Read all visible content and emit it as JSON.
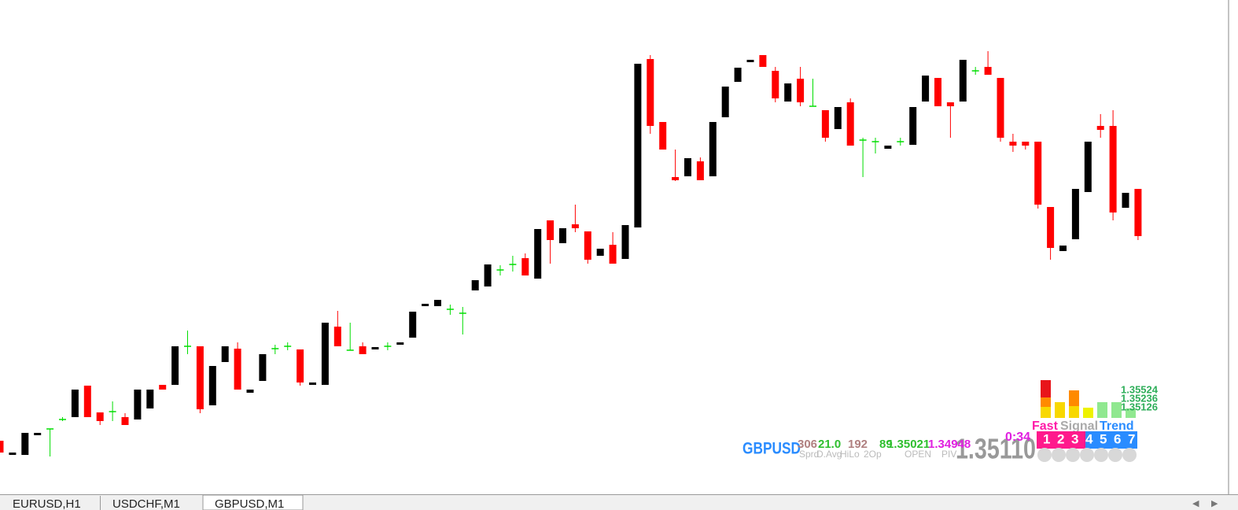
{
  "chart_data": {
    "type": "candlestick",
    "categories": [
      null,
      null,
      null,
      null,
      null,
      null,
      null,
      null,
      null,
      null,
      null,
      null,
      null,
      null,
      null,
      null,
      null,
      null,
      null,
      null,
      null,
      null,
      null,
      null,
      null,
      null,
      null,
      null,
      null,
      null,
      null,
      null,
      null,
      null,
      null,
      null,
      null,
      null,
      null,
      null,
      null,
      null,
      null,
      null,
      null,
      null,
      null,
      null,
      null,
      null,
      null,
      null,
      null,
      null,
      null,
      null,
      null,
      null,
      null,
      null,
      null,
      null,
      null,
      null,
      null,
      null,
      null,
      null,
      null,
      null,
      null,
      null,
      null,
      null,
      null,
      null,
      null,
      null,
      null,
      null,
      null,
      null,
      null,
      null,
      null,
      null,
      null,
      null,
      null,
      null,
      null,
      null
    ],
    "open": [
      1.3485,
      1.34832,
      1.34832,
      1.34857,
      1.34865,
      1.34877,
      1.3488,
      1.3492,
      1.34886,
      1.34887,
      1.3488,
      1.34877,
      1.34891,
      1.34921,
      1.34921,
      1.3497,
      1.3497,
      1.34895,
      1.3495,
      1.34967,
      1.34911,
      1.34926,
      1.34967,
      1.3497,
      1.34966,
      1.34921,
      1.34921,
      1.34995,
      1.34965,
      1.3497,
      1.34966,
      1.3497,
      1.34972,
      1.34981,
      1.35021,
      1.35021,
      1.35017,
      1.35012,
      1.35041,
      1.35046,
      1.35067,
      1.35074,
      1.35082,
      1.35056,
      1.3513,
      1.35101,
      1.35125,
      1.35116,
      1.35085,
      1.35099,
      1.35081,
      1.35121,
      1.35335,
      1.35255,
      1.35185,
      1.35186,
      1.35205,
      1.35186,
      1.35261,
      1.35306,
      1.35331,
      1.3534,
      1.3532,
      1.35281,
      1.3531,
      1.35275,
      1.3527,
      1.35246,
      1.3528,
      1.35232,
      1.3523,
      1.35221,
      1.3523,
      1.35226,
      1.35281,
      1.35311,
      1.3528,
      1.35281,
      1.3532,
      1.35325,
      1.35311,
      1.3523,
      1.3523,
      1.3523,
      1.35147,
      1.35091,
      1.35106,
      1.35166,
      1.3525,
      1.3525,
      1.35146,
      1.3517
    ],
    "high": [
      1.3485,
      1.34835,
      1.3486,
      1.3486,
      1.34865,
      1.3488,
      1.34915,
      1.3492,
      1.34886,
      1.349,
      1.34885,
      1.34915,
      1.34915,
      1.34921,
      1.3497,
      1.3499,
      1.3497,
      1.34945,
      1.3497,
      1.34975,
      1.34915,
      1.3496,
      1.34972,
      1.34975,
      1.34966,
      1.34924,
      1.35,
      1.35015,
      1.35,
      1.34975,
      1.34969,
      1.34975,
      1.34975,
      1.35014,
      1.35024,
      1.35029,
      1.35023,
      1.3502,
      1.35054,
      1.35074,
      1.35073,
      1.35085,
      1.35088,
      1.35119,
      1.3513,
      1.3512,
      1.3515,
      1.35116,
      1.35094,
      1.35115,
      1.35124,
      1.35329,
      1.3534,
      1.35255,
      1.3522,
      1.35209,
      1.3521,
      1.35255,
      1.353,
      1.35324,
      1.35334,
      1.3534,
      1.35325,
      1.35304,
      1.35325,
      1.3531,
      1.3527,
      1.35274,
      1.35285,
      1.35235,
      1.35235,
      1.35225,
      1.35235,
      1.35274,
      1.35314,
      1.35311,
      1.3528,
      1.35334,
      1.35325,
      1.35345,
      1.35311,
      1.3524,
      1.3523,
      1.3523,
      1.35147,
      1.35098,
      1.3517,
      1.3523,
      1.35265,
      1.3527,
      1.35165,
      1.3517
    ],
    "low": [
      1.34835,
      1.34832,
      1.34832,
      1.34857,
      1.3483,
      1.34875,
      1.3488,
      1.3488,
      1.3487,
      1.34875,
      1.3487,
      1.34877,
      1.34891,
      1.34915,
      1.34921,
      1.3496,
      1.34885,
      1.34895,
      1.3495,
      1.34915,
      1.34911,
      1.34926,
      1.3496,
      1.34965,
      1.3492,
      1.34921,
      1.34921,
      1.3497,
      1.34965,
      1.3496,
      1.34966,
      1.34965,
      1.34972,
      1.34981,
      1.35021,
      1.35021,
      1.3501,
      1.34985,
      1.35041,
      1.35046,
      1.3506,
      1.35065,
      1.3506,
      1.35056,
      1.35075,
      1.35101,
      1.35115,
      1.35075,
      1.35085,
      1.35075,
      1.35081,
      1.35121,
      1.3524,
      1.3522,
      1.3518,
      1.35186,
      1.35181,
      1.35186,
      1.35261,
      1.35306,
      1.35331,
      1.35325,
      1.3528,
      1.35281,
      1.35275,
      1.35275,
      1.3523,
      1.35246,
      1.35225,
      1.35185,
      1.35215,
      1.35221,
      1.35225,
      1.35226,
      1.35281,
      1.35275,
      1.35235,
      1.35281,
      1.35315,
      1.35315,
      1.3523,
      1.35217,
      1.3522,
      1.35145,
      1.3508,
      1.35091,
      1.35106,
      1.35166,
      1.35235,
      1.3513,
      1.35146,
      1.35105
    ],
    "close": [
      1.34835,
      1.34835,
      1.3486,
      1.3486,
      1.34865,
      1.34877,
      1.34915,
      1.3488,
      1.34875,
      1.34887,
      1.3487,
      1.34915,
      1.34915,
      1.34915,
      1.3497,
      1.3497,
      1.3489,
      1.34945,
      1.3497,
      1.34915,
      1.34915,
      1.3496,
      1.34967,
      1.3497,
      1.34924,
      1.34924,
      1.35,
      1.3497,
      1.34965,
      1.3496,
      1.34969,
      1.3497,
      1.34975,
      1.35014,
      1.35024,
      1.35029,
      1.35017,
      1.35012,
      1.35054,
      1.35074,
      1.35067,
      1.35074,
      1.3506,
      1.35119,
      1.35105,
      1.3512,
      1.3512,
      1.3508,
      1.35094,
      1.35075,
      1.35124,
      1.35329,
      1.3525,
      1.3522,
      1.35181,
      1.35209,
      1.35181,
      1.35255,
      1.353,
      1.35324,
      1.35334,
      1.35325,
      1.35285,
      1.35304,
      1.3528,
      1.35275,
      1.35235,
      1.35274,
      1.35225,
      1.35232,
      1.3523,
      1.35225,
      1.3523,
      1.35274,
      1.35314,
      1.35275,
      1.35275,
      1.35334,
      1.3532,
      1.35315,
      1.35235,
      1.35225,
      1.35225,
      1.3515,
      1.35095,
      1.35098,
      1.3517,
      1.3523,
      1.35245,
      1.3514,
      1.35165,
      1.3511
    ],
    "ylim": [
      1.3478,
      1.3541
    ],
    "up_color": "#000000",
    "down_color": "#ff0000",
    "doji_color": "#00dd00"
  },
  "panel": {
    "symbol": "GBPUSD",
    "price": "1.35110",
    "timer": "0:34",
    "stats": [
      "306",
      "21.0",
      "192",
      "89",
      "1.35021",
      "1.34948"
    ],
    "stat_labels": [
      "Sprd",
      "D.Avg",
      "HiLo",
      "2Op",
      "OPEN",
      "PIV"
    ],
    "levels": [
      "1.35524",
      "1.35236",
      "1.35126"
    ],
    "headers": [
      "Fast",
      "Signal",
      "Trend"
    ],
    "slots": [
      "1",
      "2",
      "3",
      "4",
      "5",
      "6",
      "7"
    ]
  },
  "tabs": [
    "EURUSD,H1",
    "USDCHF,M1",
    "GBPUSD,M1"
  ]
}
